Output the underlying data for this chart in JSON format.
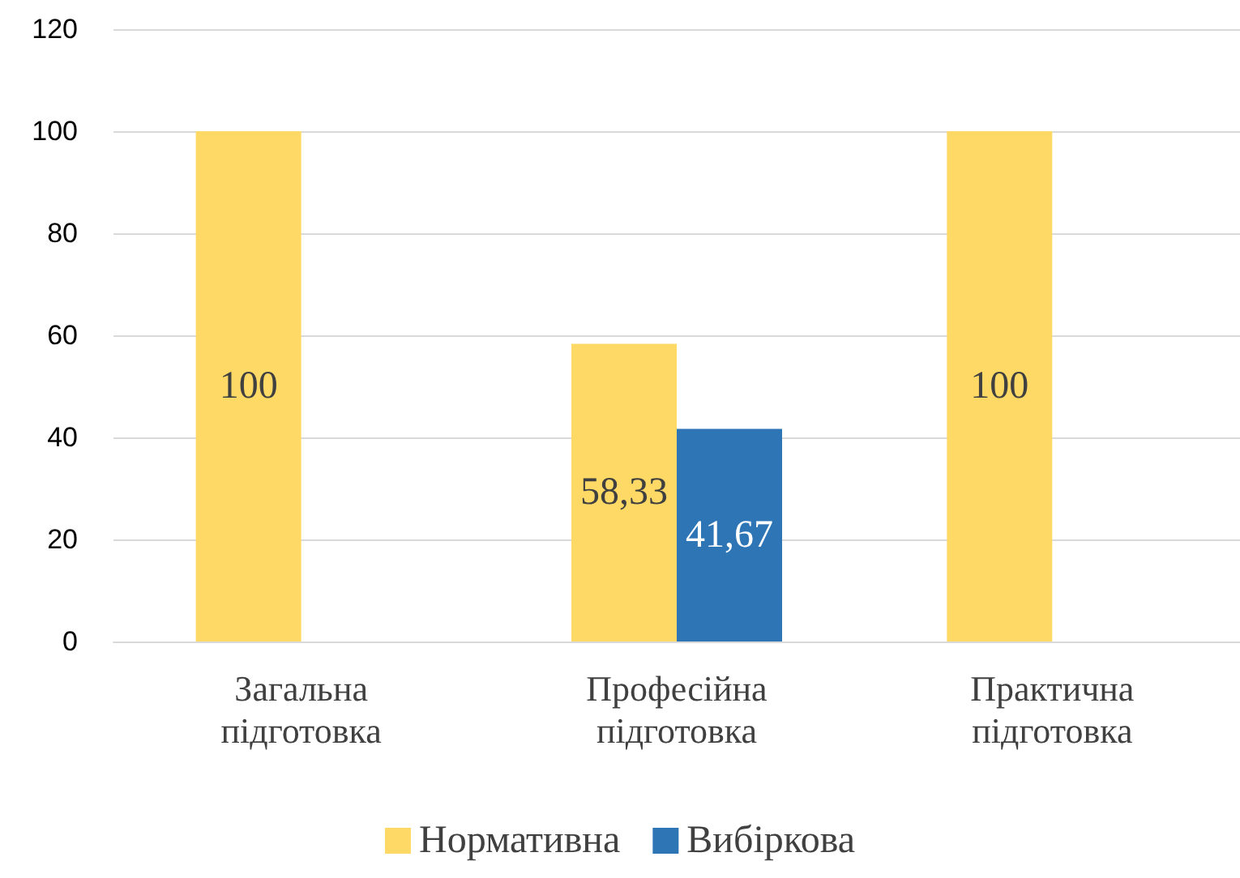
{
  "chart_data": {
    "type": "bar",
    "categories": [
      "Загальна підготовка",
      "Професійна підготовка",
      "Практична підготовка"
    ],
    "series": [
      {
        "name": "Нормативна",
        "color": "#ffd966",
        "values": [
          100,
          58.33,
          100
        ],
        "value_labels": [
          "100",
          "58,33",
          "100"
        ]
      },
      {
        "name": "Вибіркова",
        "color": "#2e75b6",
        "values": [
          null,
          41.67,
          null
        ],
        "value_labels": [
          null,
          "41,67",
          null
        ]
      }
    ],
    "ylim": [
      0,
      120
    ],
    "yticks": [
      0,
      20,
      40,
      60,
      80,
      100,
      120
    ],
    "grid": "y",
    "legend": "bottom"
  }
}
